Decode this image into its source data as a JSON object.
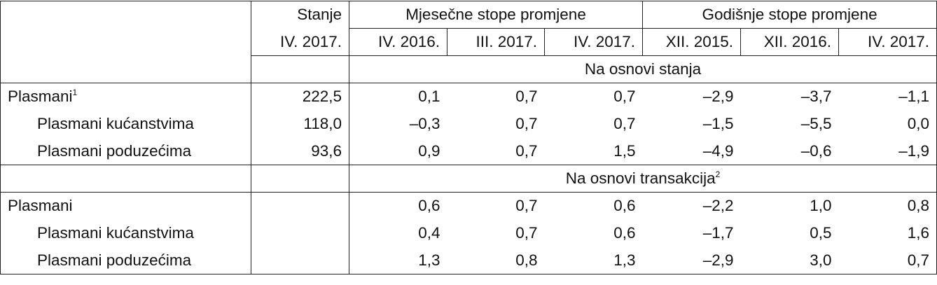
{
  "header": {
    "stock_label": "Stanje",
    "stock_period": "IV. 2017.",
    "groups": [
      "Mjesečne stope promjene",
      "Godišnje stope promjene"
    ],
    "periods": [
      "IV. 2016.",
      "III. 2017.",
      "IV. 2017.",
      "XII. 2015.",
      "XII. 2016.",
      "IV. 2017."
    ]
  },
  "sections": [
    {
      "title": "Na osnovi stanja",
      "rows": [
        {
          "label": "Plasmani",
          "note": "1",
          "stock": "222,5",
          "values": [
            "0,1",
            "0,7",
            "0,7",
            "–2,9",
            "–3,7",
            "–1,1"
          ]
        },
        {
          "label": "Plasmani kućanstvima",
          "stock": "118,0",
          "values": [
            "–0,3",
            "0,7",
            "0,7",
            "–1,5",
            "–5,5",
            "0,0"
          ]
        },
        {
          "label": "Plasmani poduzećima",
          "stock": "93,6",
          "values": [
            "0,9",
            "0,7",
            "1,5",
            "–4,9",
            "–0,6",
            "–1,9"
          ]
        }
      ]
    },
    {
      "title": "Na osnovi transakcija",
      "note": "2",
      "rows": [
        {
          "label": "Plasmani",
          "values": [
            "0,6",
            "0,7",
            "0,6",
            "–2,2",
            "1,0",
            "0,8"
          ]
        },
        {
          "label": "Plasmani kućanstvima",
          "values": [
            "0,4",
            "0,7",
            "0,6",
            "–1,7",
            "0,5",
            "1,6"
          ]
        },
        {
          "label": "Plasmani poduzećima",
          "values": [
            "1,3",
            "0,8",
            "1,3",
            "–2,9",
            "3,0",
            "0,7"
          ]
        }
      ]
    }
  ]
}
